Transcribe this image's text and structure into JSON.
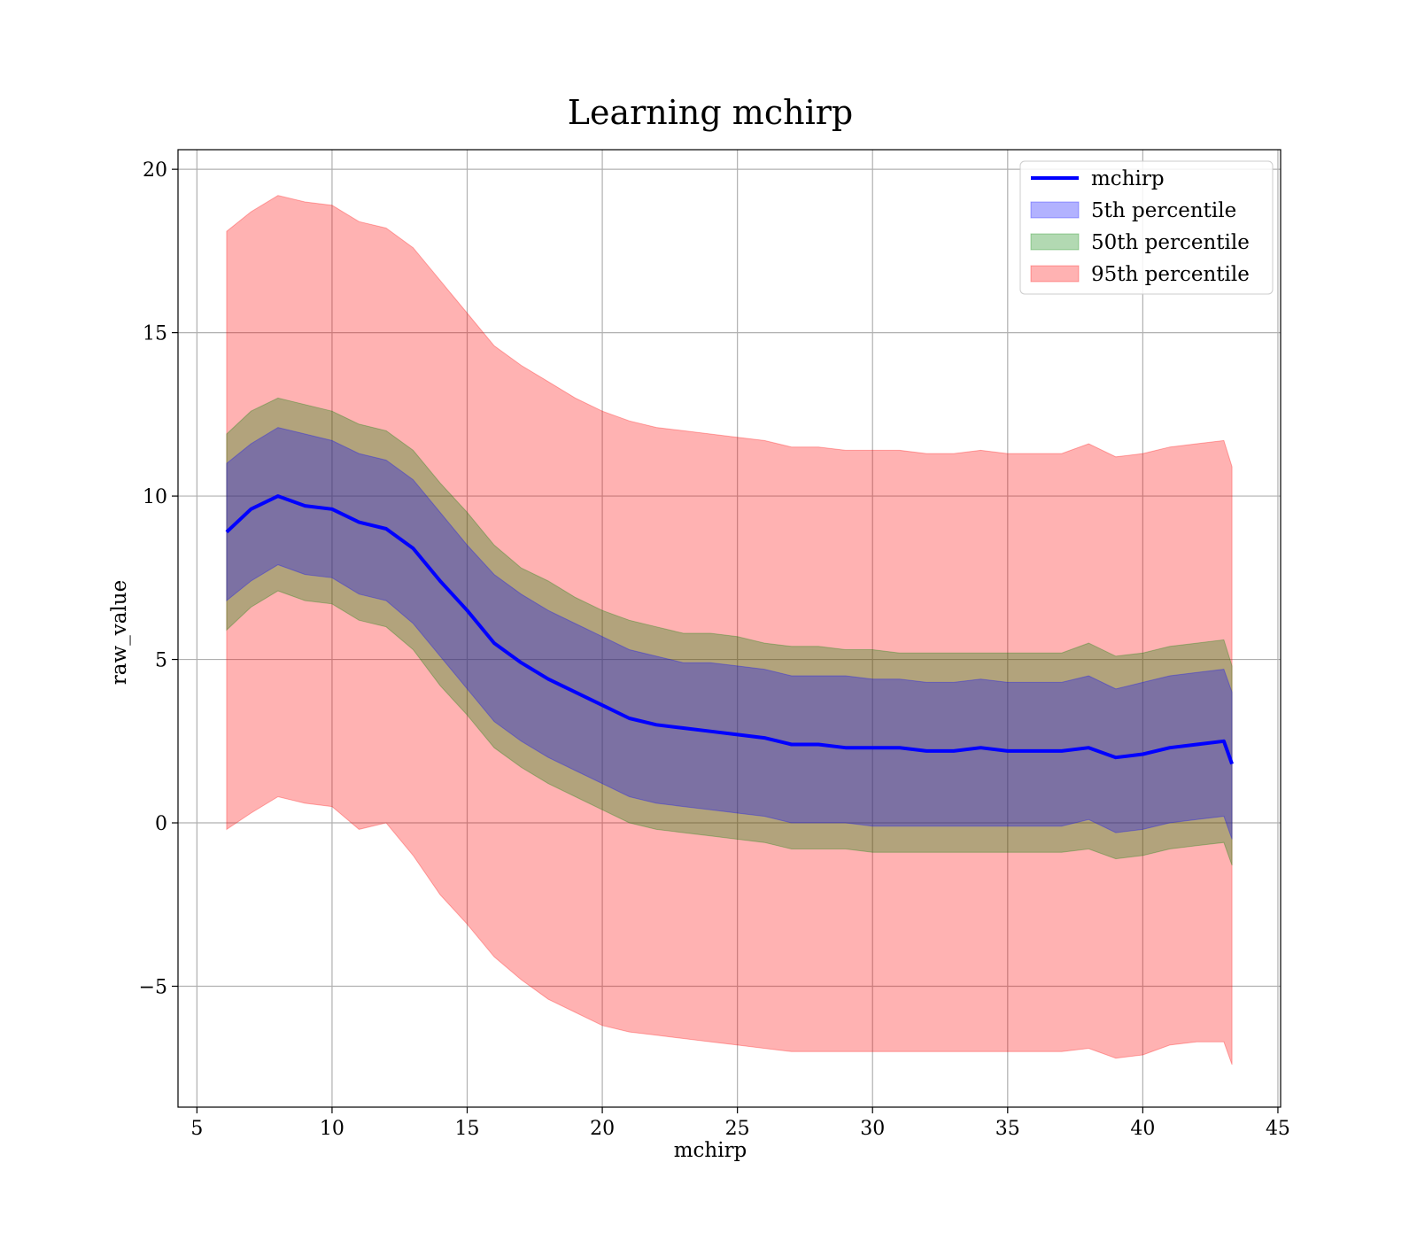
{
  "chart_data": {
    "type": "line",
    "title": "Learning mchirp",
    "xlabel": "mchirp",
    "ylabel": "raw_value",
    "xlim": [
      4.3,
      45.1
    ],
    "ylim": [
      -8.7,
      20.6
    ],
    "xticks": [
      5,
      10,
      15,
      20,
      25,
      30,
      35,
      40,
      45
    ],
    "yticks": [
      -5,
      0,
      5,
      10,
      15,
      20
    ],
    "ytick_labels": [
      "−5",
      "0",
      "5",
      "10",
      "15",
      "20"
    ],
    "grid": true,
    "legend_position": "top-right",
    "legend": [
      {
        "label": "mchirp",
        "kind": "line",
        "color": "#0000ff"
      },
      {
        "label": "5th percentile",
        "kind": "band",
        "color": "#0000ff"
      },
      {
        "label": "50th percentile",
        "kind": "band",
        "color": "#008000"
      },
      {
        "label": "95th percentile",
        "kind": "band",
        "color": "#ff0000"
      }
    ],
    "x": [
      6.1,
      7,
      8,
      9,
      10,
      11,
      12,
      13,
      14,
      15,
      16,
      17,
      18,
      19,
      20,
      21,
      22,
      23,
      24,
      25,
      26,
      27,
      28,
      29,
      30,
      31,
      32,
      33,
      34,
      35,
      36,
      37,
      38,
      39,
      40,
      41,
      42,
      43,
      43.3
    ],
    "series": [
      {
        "name": "mchirp",
        "values": [
          8.9,
          9.6,
          10.0,
          9.7,
          9.6,
          9.2,
          9.0,
          8.4,
          7.4,
          6.5,
          5.5,
          4.9,
          4.4,
          4.0,
          3.6,
          3.2,
          3.0,
          2.9,
          2.8,
          2.7,
          2.6,
          2.4,
          2.4,
          2.3,
          2.3,
          2.3,
          2.2,
          2.2,
          2.3,
          2.2,
          2.2,
          2.2,
          2.3,
          2.0,
          2.1,
          2.3,
          2.4,
          2.5,
          1.8
        ]
      },
      {
        "name": "95th percentile",
        "lower": [
          -0.2,
          0.3,
          0.8,
          0.6,
          0.5,
          -0.2,
          0.0,
          -1.0,
          -2.2,
          -3.1,
          -4.1,
          -4.8,
          -5.4,
          -5.8,
          -6.2,
          -6.4,
          -6.5,
          -6.6,
          -6.7,
          -6.8,
          -6.9,
          -7.0,
          -7.0,
          -7.0,
          -7.0,
          -7.0,
          -7.0,
          -7.0,
          -7.0,
          -7.0,
          -7.0,
          -7.0,
          -6.9,
          -7.2,
          -7.1,
          -6.8,
          -6.7,
          -6.7,
          -7.4
        ],
        "upper": [
          18.1,
          18.7,
          19.2,
          19.0,
          18.9,
          18.4,
          18.2,
          17.6,
          16.6,
          15.6,
          14.6,
          14.0,
          13.5,
          13.0,
          12.6,
          12.3,
          12.1,
          12.0,
          11.9,
          11.8,
          11.7,
          11.5,
          11.5,
          11.4,
          11.4,
          11.4,
          11.3,
          11.3,
          11.4,
          11.3,
          11.3,
          11.3,
          11.6,
          11.2,
          11.3,
          11.5,
          11.6,
          11.7,
          10.9
        ]
      },
      {
        "name": "50th percentile",
        "lower": [
          5.9,
          6.6,
          7.1,
          6.8,
          6.7,
          6.2,
          6.0,
          5.3,
          4.2,
          3.3,
          2.3,
          1.7,
          1.2,
          0.8,
          0.4,
          0.0,
          -0.2,
          -0.3,
          -0.4,
          -0.5,
          -0.6,
          -0.8,
          -0.8,
          -0.8,
          -0.9,
          -0.9,
          -0.9,
          -0.9,
          -0.9,
          -0.9,
          -0.9,
          -0.9,
          -0.8,
          -1.1,
          -1.0,
          -0.8,
          -0.7,
          -0.6,
          -1.3
        ],
        "upper": [
          11.9,
          12.6,
          13.0,
          12.8,
          12.6,
          12.2,
          12.0,
          11.4,
          10.4,
          9.5,
          8.5,
          7.8,
          7.4,
          6.9,
          6.5,
          6.2,
          6.0,
          5.8,
          5.8,
          5.7,
          5.5,
          5.4,
          5.4,
          5.3,
          5.3,
          5.2,
          5.2,
          5.2,
          5.2,
          5.2,
          5.2,
          5.2,
          5.5,
          5.1,
          5.2,
          5.4,
          5.5,
          5.6,
          4.8
        ]
      },
      {
        "name": "5th percentile",
        "lower": [
          6.8,
          7.4,
          7.9,
          7.6,
          7.5,
          7.0,
          6.8,
          6.1,
          5.1,
          4.1,
          3.1,
          2.5,
          2.0,
          1.6,
          1.2,
          0.8,
          0.6,
          0.5,
          0.4,
          0.3,
          0.2,
          0.0,
          0.0,
          0.0,
          -0.1,
          -0.1,
          -0.1,
          -0.1,
          -0.1,
          -0.1,
          -0.1,
          -0.1,
          0.1,
          -0.3,
          -0.2,
          0.0,
          0.1,
          0.2,
          -0.5
        ],
        "upper": [
          11.0,
          11.6,
          12.1,
          11.9,
          11.7,
          11.3,
          11.1,
          10.5,
          9.5,
          8.5,
          7.6,
          7.0,
          6.5,
          6.1,
          5.7,
          5.3,
          5.1,
          4.9,
          4.9,
          4.8,
          4.7,
          4.5,
          4.5,
          4.5,
          4.4,
          4.4,
          4.3,
          4.3,
          4.4,
          4.3,
          4.3,
          4.3,
          4.5,
          4.1,
          4.3,
          4.5,
          4.6,
          4.7,
          4.0
        ]
      }
    ]
  }
}
